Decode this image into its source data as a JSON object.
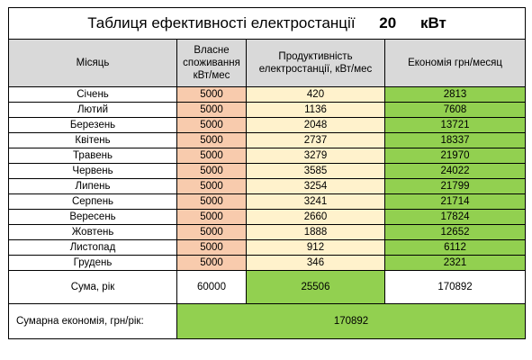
{
  "title": {
    "text": "Таблиця ефективності електростанції",
    "power_value": "20",
    "power_unit": "кВт"
  },
  "headers": {
    "month": "Місяць",
    "own": "Власне споживання кВт/мес",
    "production": "Продуктивність електростанції, кВт/мес",
    "economy": "Економія грн/месяц"
  },
  "rows": [
    {
      "month": "Січень",
      "own": "5000",
      "production": "420",
      "economy": "2813"
    },
    {
      "month": "Лютий",
      "own": "5000",
      "production": "1136",
      "economy": "7608"
    },
    {
      "month": "Березень",
      "own": "5000",
      "production": "2048",
      "economy": "13721"
    },
    {
      "month": "Квітень",
      "own": "5000",
      "production": "2737",
      "economy": "18337"
    },
    {
      "month": "Травень",
      "own": "5000",
      "production": "3279",
      "economy": "21970"
    },
    {
      "month": "Червень",
      "own": "5000",
      "production": "3585",
      "economy": "24022"
    },
    {
      "month": "Липень",
      "own": "5000",
      "production": "3254",
      "economy": "21799"
    },
    {
      "month": "Серпень",
      "own": "5000",
      "production": "3241",
      "economy": "21714"
    },
    {
      "month": "Вересень",
      "own": "5000",
      "production": "2660",
      "economy": "17824"
    },
    {
      "month": "Жовтень",
      "own": "5000",
      "production": "1888",
      "economy": "12652"
    },
    {
      "month": "Листопад",
      "own": "5000",
      "production": "912",
      "economy": "6112"
    },
    {
      "month": "Грудень",
      "own": "5000",
      "production": "346",
      "economy": "2321"
    }
  ],
  "sum_row": {
    "label": "Сума, рік",
    "own": "60000",
    "production": "25506",
    "economy": "170892"
  },
  "total_row": {
    "label": "Сумарна економія, грн/рік:",
    "value": "170892"
  },
  "colors": {
    "header_bg": "#d9d9d9",
    "own_bg": "#f8cbad",
    "production_bg": "#fff2cc",
    "economy_bg": "#92d050"
  }
}
